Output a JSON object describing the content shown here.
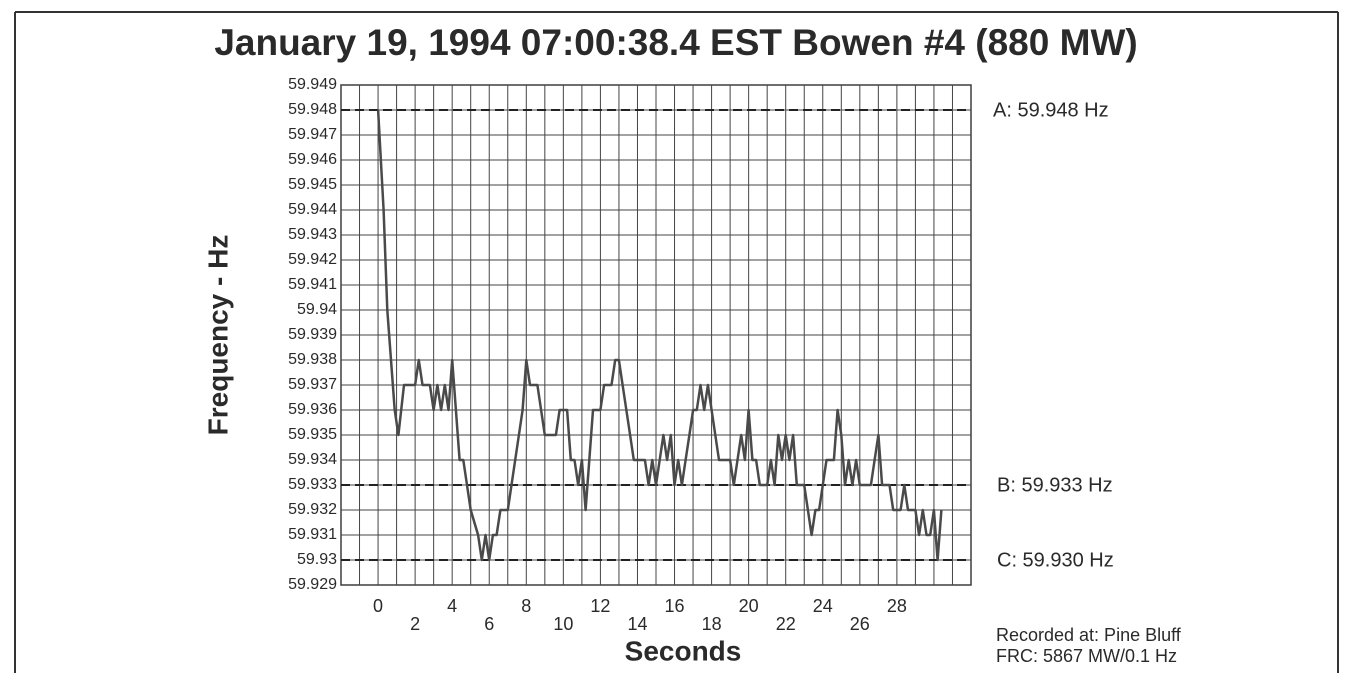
{
  "chart_data": {
    "type": "line",
    "title": "January 19, 1994  07:00:38.4 EST  Bowen #4  (880 MW)",
    "ylabel": "Frequency - Hz",
    "xlabel": "Seconds",
    "notes": [
      "Recorded at: Pine Bluff",
      "FRC: 5867 MW/0.1 Hz"
    ],
    "color": "#4a4a4a",
    "grid": true,
    "xlim": [
      -2,
      32
    ],
    "ylim": [
      59.929,
      59.949
    ],
    "xticks": [
      0,
      2,
      4,
      6,
      8,
      10,
      12,
      14,
      16,
      18,
      20,
      22,
      24,
      26,
      28
    ],
    "xgrid": [
      -2,
      -1,
      0,
      1,
      2,
      3,
      4,
      5,
      6,
      7,
      8,
      9,
      10,
      11,
      12,
      13,
      14,
      15,
      16,
      17,
      18,
      19,
      20,
      21,
      22,
      23,
      24,
      25,
      26,
      27,
      28,
      29,
      30,
      31,
      32
    ],
    "yticks": [
      59.929,
      59.93,
      59.931,
      59.932,
      59.933,
      59.934,
      59.935,
      59.936,
      59.937,
      59.938,
      59.939,
      59.94,
      59.941,
      59.942,
      59.943,
      59.944,
      59.945,
      59.946,
      59.947,
      59.948,
      59.949
    ],
    "reference_lines": [
      {
        "value": 59.948,
        "label": "A: 59.948 Hz"
      },
      {
        "value": 59.933,
        "label": "B: 59.933 Hz"
      },
      {
        "value": 59.93,
        "label": "C: 59.930 Hz"
      }
    ],
    "x": [
      0,
      0.3,
      0.5,
      0.7,
      0.9,
      1.1,
      1.4,
      2.0,
      2.2,
      2.4,
      2.8,
      3.0,
      3.2,
      3.4,
      3.6,
      3.8,
      4.0,
      4.2,
      4.4,
      4.6,
      5.0,
      5.4,
      5.6,
      5.8,
      6.0,
      6.2,
      6.4,
      6.6,
      7.0,
      7.4,
      7.8,
      8.0,
      8.2,
      8.6,
      8.8,
      9.0,
      9.6,
      9.8,
      10.2,
      10.4,
      10.6,
      10.8,
      11.0,
      11.2,
      11.4,
      11.6,
      12.0,
      12.2,
      12.6,
      12.8,
      13.0,
      13.2,
      13.6,
      13.8,
      14.2,
      14.4,
      14.6,
      14.8,
      15.0,
      15.2,
      15.4,
      15.6,
      15.8,
      16.0,
      16.2,
      16.4,
      16.6,
      16.8,
      17.0,
      17.2,
      17.4,
      17.6,
      17.8,
      18.0,
      18.4,
      19.0,
      19.2,
      19.4,
      19.6,
      19.8,
      20.0,
      20.2,
      20.4,
      20.6,
      21.0,
      21.2,
      21.4,
      21.6,
      21.8,
      22.0,
      22.2,
      22.4,
      22.6,
      23.0,
      23.2,
      23.4,
      23.6,
      23.8,
      24.0,
      24.2,
      24.6,
      24.8,
      25.0,
      25.2,
      25.4,
      25.6,
      25.8,
      26.0,
      26.2,
      26.6,
      26.8,
      27.0,
      27.2,
      27.6,
      27.8,
      28.2,
      28.4,
      28.6,
      29.0,
      29.2,
      29.4,
      29.6,
      29.8,
      30.0,
      30.2,
      30.4
    ],
    "values": [
      59.948,
      59.944,
      59.94,
      59.938,
      59.936,
      59.935,
      59.937,
      59.937,
      59.938,
      59.937,
      59.937,
      59.936,
      59.937,
      59.936,
      59.937,
      59.936,
      59.938,
      59.936,
      59.934,
      59.934,
      59.932,
      59.931,
      59.93,
      59.931,
      59.93,
      59.931,
      59.931,
      59.932,
      59.932,
      59.934,
      59.936,
      59.938,
      59.937,
      59.937,
      59.936,
      59.935,
      59.935,
      59.936,
      59.936,
      59.934,
      59.934,
      59.933,
      59.934,
      59.932,
      59.934,
      59.936,
      59.936,
      59.937,
      59.937,
      59.938,
      59.938,
      59.937,
      59.935,
      59.934,
      59.934,
      59.934,
      59.933,
      59.934,
      59.933,
      59.934,
      59.935,
      59.934,
      59.935,
      59.933,
      59.934,
      59.933,
      59.934,
      59.935,
      59.936,
      59.936,
      59.937,
      59.936,
      59.937,
      59.936,
      59.934,
      59.934,
      59.933,
      59.934,
      59.935,
      59.934,
      59.936,
      59.934,
      59.934,
      59.933,
      59.933,
      59.934,
      59.933,
      59.935,
      59.934,
      59.935,
      59.934,
      59.935,
      59.933,
      59.933,
      59.932,
      59.931,
      59.932,
      59.932,
      59.933,
      59.934,
      59.934,
      59.936,
      59.935,
      59.933,
      59.934,
      59.933,
      59.934,
      59.933,
      59.933,
      59.933,
      59.934,
      59.935,
      59.933,
      59.933,
      59.932,
      59.932,
      59.933,
      59.932,
      59.932,
      59.931,
      59.932,
      59.931,
      59.931,
      59.932,
      59.93,
      59.932
    ]
  }
}
